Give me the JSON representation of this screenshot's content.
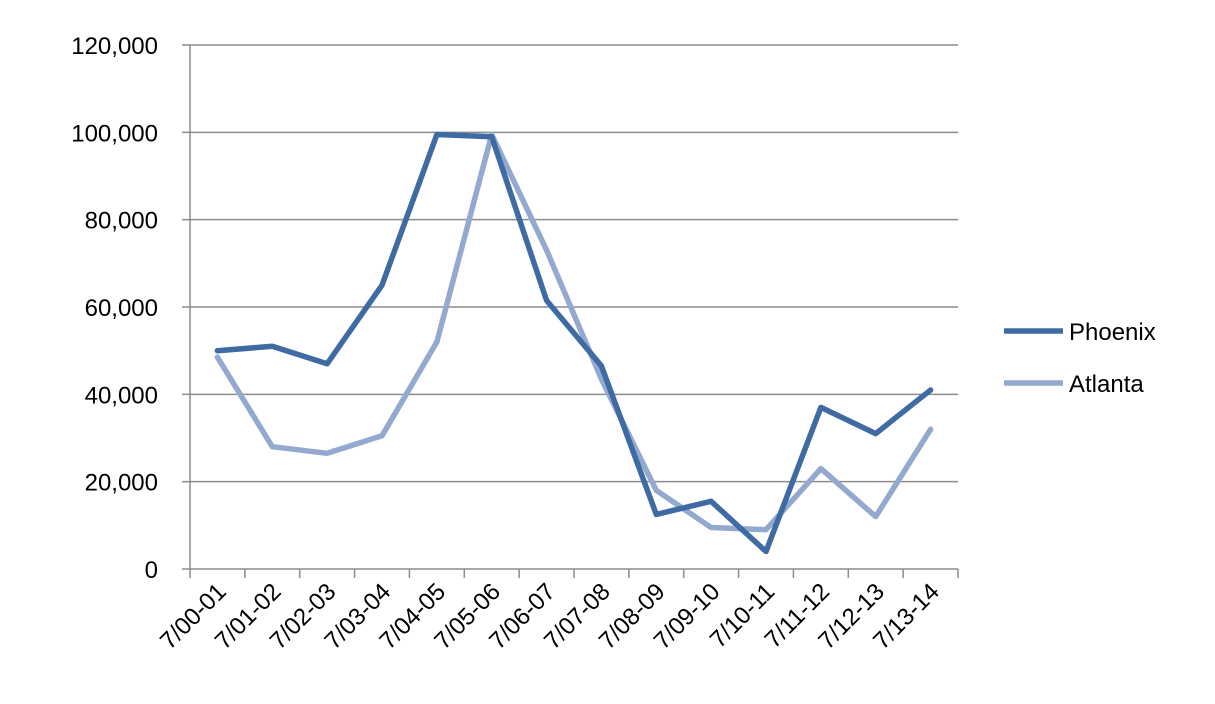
{
  "chart_data": {
    "type": "line",
    "title": "",
    "xlabel": "",
    "ylabel": "",
    "categories": [
      "7/00-01",
      "7/01-02",
      "7/02-03",
      "7/03-04",
      "7/04-05",
      "7/05-06",
      "7/06-07",
      "7/07-08",
      "7/08-09",
      "7/09-10",
      "7/10-11",
      "7/11-12",
      "7/12-13",
      "7/13-14"
    ],
    "y_ticks": [
      "0",
      "20,000",
      "40,000",
      "60,000",
      "80,000",
      "100,000",
      "120,000"
    ],
    "ylim": [
      0,
      120000
    ],
    "grid": "horizontal",
    "legend": "right",
    "series": [
      {
        "name": "Phoenix",
        "color": "#3E6BA3",
        "values": [
          50000,
          51000,
          47000,
          65000,
          99500,
          99000,
          61500,
          46500,
          12500,
          15500,
          4000,
          37000,
          31000,
          41000
        ]
      },
      {
        "name": "Atlanta",
        "color": "#93A9CF",
        "values": [
          48500,
          28000,
          26500,
          30500,
          52000,
          99500,
          73000,
          43500,
          18000,
          9500,
          9000,
          23000,
          12000,
          32000
        ]
      }
    ]
  }
}
